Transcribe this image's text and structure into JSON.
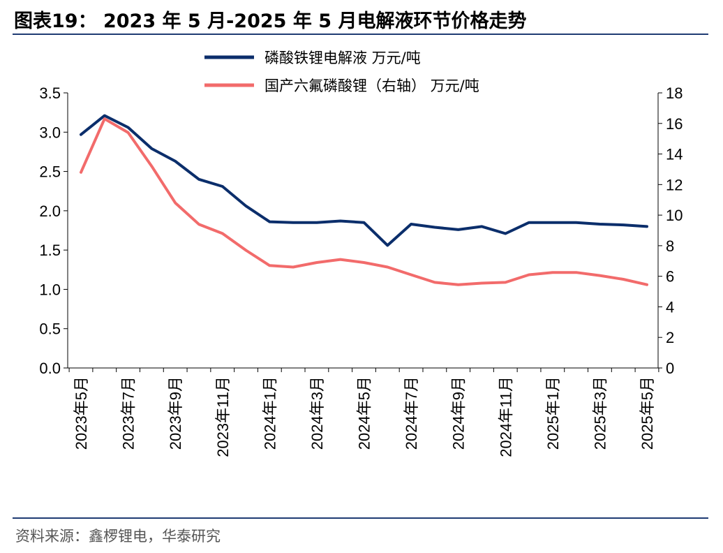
{
  "header": {
    "title": "图表19： 2023 年 5 月-2025 年 5 月电解液环节价格走势"
  },
  "footer": {
    "source": "资料来源：鑫椤锂电，华泰研究"
  },
  "chart_data": {
    "type": "line",
    "x": [
      "2023年5月",
      "2023年6月",
      "2023年7月",
      "2023年8月",
      "2023年9月",
      "2023年10月",
      "2023年11月",
      "2023年12月",
      "2024年1月",
      "2024年2月",
      "2024年3月",
      "2024年4月",
      "2024年5月",
      "2024年6月",
      "2024年7月",
      "2024年8月",
      "2024年9月",
      "2024年10月",
      "2024年11月",
      "2024年12月",
      "2025年1月",
      "2025年2月",
      "2025年3月",
      "2025年4月",
      "2025年5月"
    ],
    "x_tick_labels": [
      "2023年5月",
      "2023年7月",
      "2023年9月",
      "2023年11月",
      "2024年1月",
      "2024年3月",
      "2024年5月",
      "2024年7月",
      "2024年9月",
      "2024年11月",
      "2025年1月",
      "2025年3月",
      "2025年5月"
    ],
    "series": [
      {
        "name": "磷酸铁锂电解液 万元/吨",
        "axis": "left",
        "color": "#0b2e6b",
        "values": [
          2.97,
          3.21,
          3.06,
          2.79,
          2.63,
          2.4,
          2.31,
          2.06,
          1.86,
          1.85,
          1.85,
          1.87,
          1.85,
          1.56,
          1.83,
          1.79,
          1.76,
          1.8,
          1.71,
          1.85,
          1.85,
          1.85,
          1.83,
          1.82,
          1.8
        ]
      },
      {
        "name": "国产六氟磷酸锂（右轴） 万元/吨",
        "axis": "right",
        "color": "#f26b6b",
        "values": [
          12.8,
          16.3,
          15.4,
          13.2,
          10.8,
          9.4,
          8.8,
          7.7,
          6.7,
          6.6,
          6.9,
          7.1,
          6.9,
          6.6,
          6.1,
          5.6,
          5.45,
          5.55,
          5.6,
          6.1,
          6.25,
          6.25,
          6.05,
          5.8,
          5.45
        ]
      }
    ],
    "y_left": {
      "min": 0,
      "max": 3.5,
      "ticks": [
        "0.0",
        "0.5",
        "1.0",
        "1.5",
        "2.0",
        "2.5",
        "3.0",
        "3.5"
      ]
    },
    "y_right": {
      "min": 0,
      "max": 18,
      "ticks": [
        "0",
        "2",
        "4",
        "6",
        "8",
        "10",
        "12",
        "14",
        "16",
        "18"
      ]
    },
    "grid": false,
    "legend_position": "top"
  }
}
